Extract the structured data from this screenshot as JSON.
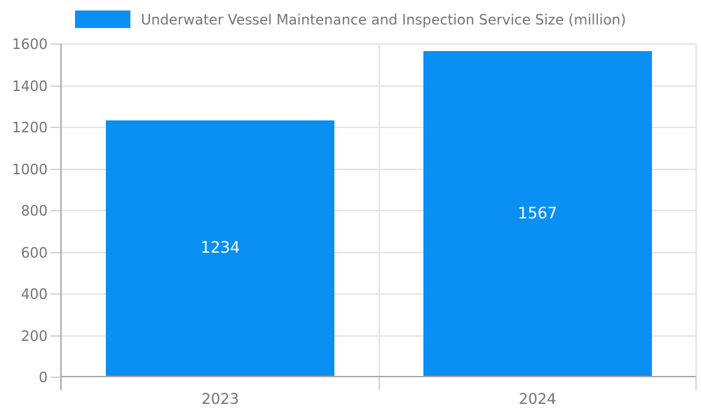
{
  "legend": {
    "label": "Underwater Vessel Maintenance and Inspection Service Size (million)"
  },
  "chart_data": {
    "type": "bar",
    "title": "",
    "categories": [
      "2023",
      "2024"
    ],
    "series": [
      {
        "name": "Underwater Vessel Maintenance and Inspection Service Size (million)",
        "values": [
          1234,
          1567
        ]
      }
    ],
    "data_labels": [
      "1234",
      "1567"
    ],
    "xlabel": "",
    "ylabel": "",
    "ylim": [
      0,
      1600
    ],
    "ytick_step": 200,
    "ytick_labels": [
      "0",
      "200",
      "400",
      "600",
      "800",
      "1000",
      "1200",
      "1400",
      "1600"
    ],
    "grid": true,
    "legend_position": "top",
    "bar_width_ratio": 0.72
  },
  "colors": {
    "bar": "#0a8ff2",
    "axis_text": "#757575",
    "grid_line": "#e4e4e4",
    "tick_line": "#d4d4d4",
    "axis_line": "#ababab",
    "data_label_text": "#ffffff",
    "background": "#ffffff"
  }
}
